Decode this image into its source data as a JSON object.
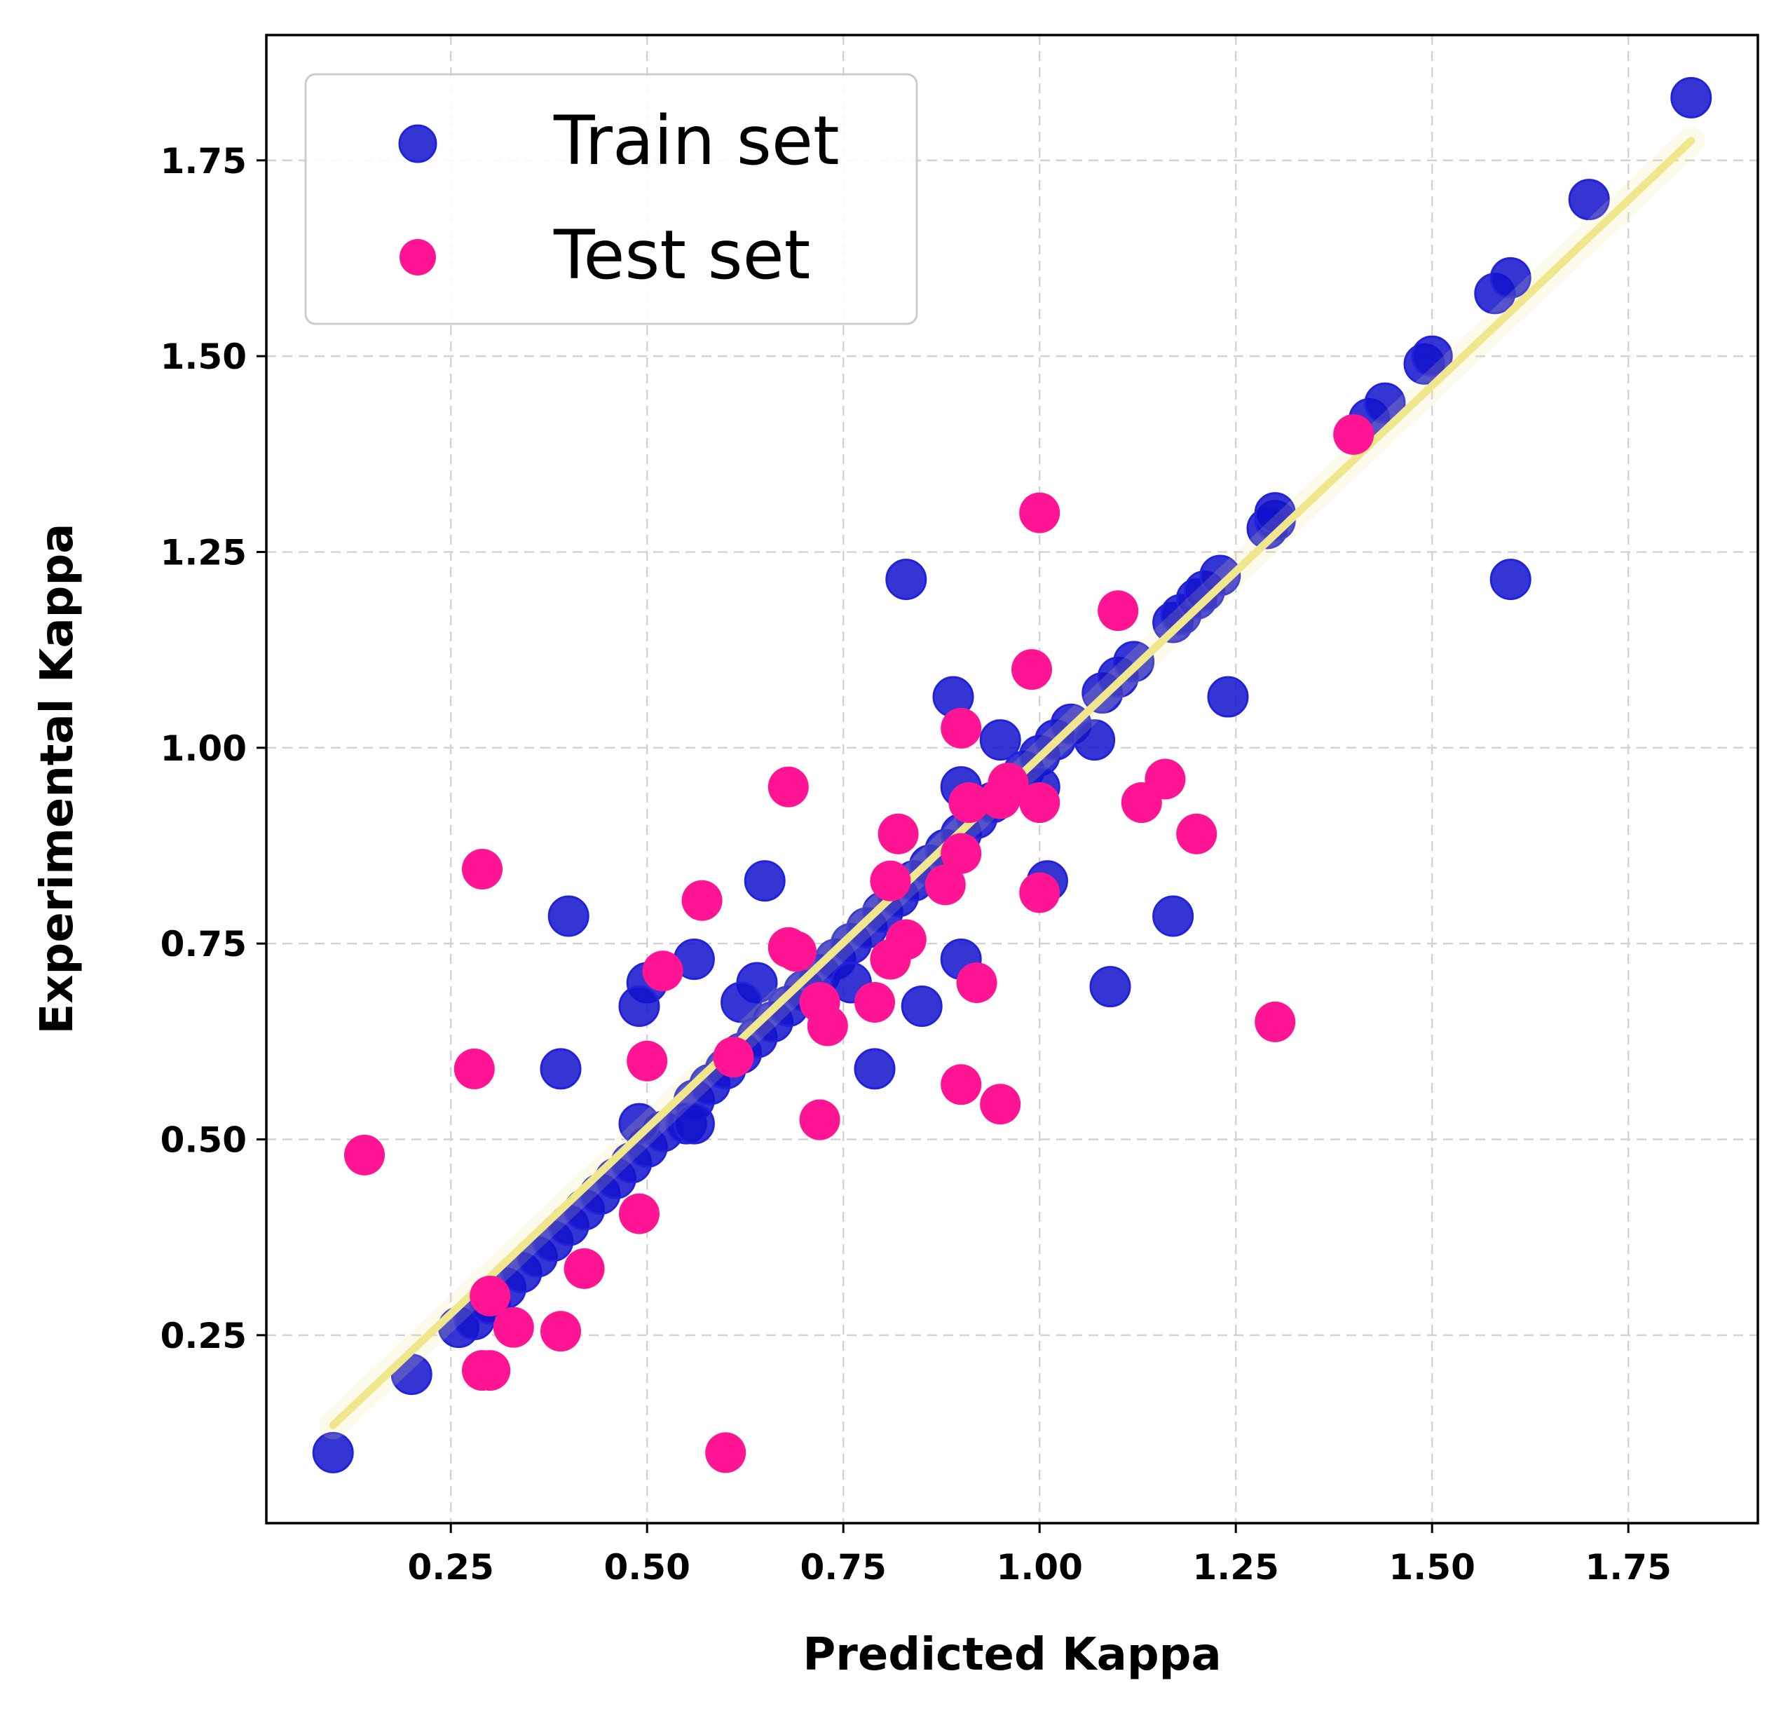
{
  "chart_data": {
    "type": "scatter",
    "title": "",
    "xlabel": "Predicted Kappa",
    "ylabel": "Experimental Kappa",
    "xlim": [
      0.015,
      1.915
    ],
    "ylim": [
      0.01,
      1.91
    ],
    "x_ticks": [
      "0.25",
      "0.50",
      "0.75",
      "1.00",
      "1.25",
      "1.50",
      "1.75"
    ],
    "y_ticks": [
      "0.25",
      "0.50",
      "0.75",
      "1.00",
      "1.25",
      "1.50",
      "1.75"
    ],
    "grid": true,
    "legend_position": "top-left",
    "fit_line": {
      "x": [
        0.1,
        1.83
      ],
      "y": [
        0.135,
        1.775
      ],
      "color": "#f0e68c"
    },
    "series": [
      {
        "name": "Train set",
        "color": "#1212cc",
        "points": [
          [
            0.1,
            0.1
          ],
          [
            0.2,
            0.2
          ],
          [
            0.26,
            0.26
          ],
          [
            0.28,
            0.27
          ],
          [
            0.3,
            0.29
          ],
          [
            0.32,
            0.31
          ],
          [
            0.34,
            0.33
          ],
          [
            0.36,
            0.35
          ],
          [
            0.38,
            0.37
          ],
          [
            0.4,
            0.39
          ],
          [
            0.42,
            0.41
          ],
          [
            0.44,
            0.43
          ],
          [
            0.46,
            0.45
          ],
          [
            0.48,
            0.47
          ],
          [
            0.5,
            0.49
          ],
          [
            0.52,
            0.51
          ],
          [
            0.55,
            0.52
          ],
          [
            0.56,
            0.55
          ],
          [
            0.58,
            0.57
          ],
          [
            0.6,
            0.59
          ],
          [
            0.62,
            0.61
          ],
          [
            0.64,
            0.63
          ],
          [
            0.66,
            0.65
          ],
          [
            0.68,
            0.67
          ],
          [
            0.7,
            0.69
          ],
          [
            0.72,
            0.71
          ],
          [
            0.74,
            0.73
          ],
          [
            0.76,
            0.75
          ],
          [
            0.78,
            0.77
          ],
          [
            0.8,
            0.79
          ],
          [
            0.82,
            0.81
          ],
          [
            0.84,
            0.83
          ],
          [
            0.86,
            0.85
          ],
          [
            0.88,
            0.87
          ],
          [
            0.9,
            0.89
          ],
          [
            0.92,
            0.91
          ],
          [
            0.94,
            0.93
          ],
          [
            0.96,
            0.95
          ],
          [
            0.98,
            0.97
          ],
          [
            1.0,
            0.99
          ],
          [
            1.02,
            1.01
          ],
          [
            1.04,
            1.03
          ],
          [
            1.08,
            1.07
          ],
          [
            1.1,
            1.09
          ],
          [
            1.12,
            1.11
          ],
          [
            1.17,
            1.16
          ],
          [
            1.18,
            1.17
          ],
          [
            1.2,
            1.19
          ],
          [
            1.21,
            1.2
          ],
          [
            1.23,
            1.22
          ],
          [
            1.29,
            1.28
          ],
          [
            1.3,
            1.29
          ],
          [
            1.3,
            1.3
          ],
          [
            1.42,
            1.42
          ],
          [
            1.44,
            1.44
          ],
          [
            1.49,
            1.49
          ],
          [
            1.5,
            1.5
          ],
          [
            1.58,
            1.58
          ],
          [
            1.6,
            1.6
          ],
          [
            1.7,
            1.7
          ],
          [
            1.83,
            1.83
          ],
          [
            0.83,
            1.215
          ],
          [
            1.6,
            1.215
          ],
          [
            0.89,
            1.065
          ],
          [
            1.24,
            1.065
          ],
          [
            0.95,
            1.01
          ],
          [
            1.07,
            1.01
          ],
          [
            0.9,
            0.95
          ],
          [
            1.0,
            0.95
          ],
          [
            0.65,
            0.83
          ],
          [
            1.01,
            0.83
          ],
          [
            0.4,
            0.785
          ],
          [
            1.17,
            0.785
          ],
          [
            0.56,
            0.73
          ],
          [
            0.9,
            0.73
          ],
          [
            0.5,
            0.7
          ],
          [
            0.64,
            0.7
          ],
          [
            1.09,
            0.695
          ],
          [
            0.76,
            0.7
          ],
          [
            0.49,
            0.67
          ],
          [
            0.62,
            0.675
          ],
          [
            0.85,
            0.67
          ],
          [
            0.39,
            0.59
          ],
          [
            0.79,
            0.59
          ],
          [
            0.49,
            0.52
          ],
          [
            0.56,
            0.52
          ]
        ]
      },
      {
        "name": "Test set",
        "color": "#ff1493",
        "points": [
          [
            1.0,
            1.3
          ],
          [
            1.1,
            1.175
          ],
          [
            0.99,
            1.1
          ],
          [
            0.9,
            1.025
          ],
          [
            1.4,
            1.4
          ],
          [
            1.16,
            0.96
          ],
          [
            0.96,
            0.955
          ],
          [
            0.68,
            0.95
          ],
          [
            0.95,
            0.935
          ],
          [
            1.0,
            0.93
          ],
          [
            0.91,
            0.93
          ],
          [
            1.13,
            0.93
          ],
          [
            1.2,
            0.89
          ],
          [
            0.82,
            0.89
          ],
          [
            0.9,
            0.865
          ],
          [
            0.29,
            0.845
          ],
          [
            0.81,
            0.83
          ],
          [
            0.88,
            0.825
          ],
          [
            1.0,
            0.815
          ],
          [
            0.57,
            0.805
          ],
          [
            0.83,
            0.755
          ],
          [
            0.68,
            0.745
          ],
          [
            0.69,
            0.74
          ],
          [
            0.81,
            0.73
          ],
          [
            0.52,
            0.715
          ],
          [
            0.92,
            0.7
          ],
          [
            0.79,
            0.675
          ],
          [
            0.72,
            0.675
          ],
          [
            0.73,
            0.645
          ],
          [
            1.3,
            0.65
          ],
          [
            0.61,
            0.605
          ],
          [
            0.5,
            0.6
          ],
          [
            0.28,
            0.59
          ],
          [
            0.9,
            0.57
          ],
          [
            0.95,
            0.545
          ],
          [
            0.72,
            0.525
          ],
          [
            0.14,
            0.48
          ],
          [
            0.49,
            0.405
          ],
          [
            0.42,
            0.335
          ],
          [
            0.3,
            0.3
          ],
          [
            0.33,
            0.26
          ],
          [
            0.39,
            0.255
          ],
          [
            0.29,
            0.205
          ],
          [
            0.3,
            0.205
          ],
          [
            0.6,
            0.1
          ]
        ]
      }
    ]
  }
}
